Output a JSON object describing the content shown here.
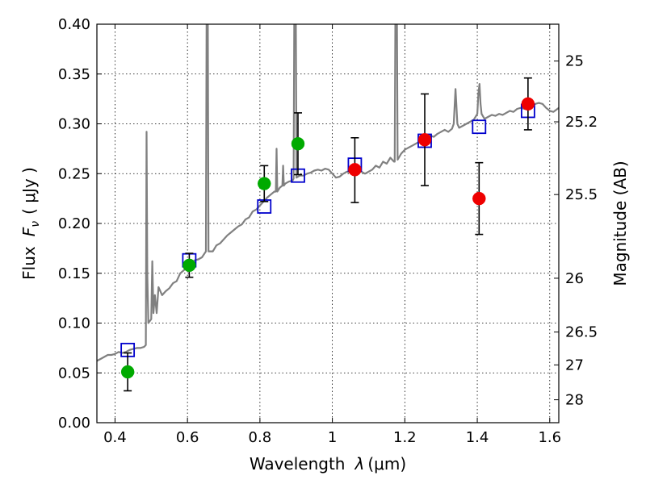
{
  "chart_data": {
    "type": "scatter",
    "xlabel_text": "Wavelength",
    "xlabel_symbol": "λ",
    "xlabel_unit": "(μm)",
    "ylabel_text": "Flux",
    "ylabel_symbol": "F",
    "ylabel_subscript": "ν",
    "ylabel_unit": "( μJy )",
    "y2label": "Magnitude (AB)",
    "xlim": [
      0.35,
      1.625
    ],
    "ylim": [
      0.0,
      0.4
    ],
    "x_ticks": [
      0.4,
      0.6,
      0.8,
      1.0,
      1.2,
      1.4,
      1.6
    ],
    "x_tick_labels": [
      "0.4",
      "0.6",
      "0.8",
      "1",
      "1.2",
      "1.4",
      "1.6"
    ],
    "y_ticks": [
      0.0,
      0.05,
      0.1,
      0.15,
      0.2,
      0.25,
      0.3,
      0.35,
      0.4
    ],
    "y_tick_labels": [
      "0.00",
      "0.05",
      "0.10",
      "0.15",
      "0.20",
      "0.25",
      "0.30",
      "0.35",
      "0.40"
    ],
    "y2_ticks": [
      {
        "label": "25",
        "flux": 0.363
      },
      {
        "label": "25.2",
        "flux": 0.302
      },
      {
        "label": "25.5",
        "flux": 0.229
      },
      {
        "label": "26",
        "flux": 0.145
      },
      {
        "label": "26.5",
        "flux": 0.091
      },
      {
        "label": "27",
        "flux": 0.058
      },
      {
        "label": "28",
        "flux": 0.023
      }
    ],
    "colors": {
      "model": "#808080",
      "green": "#00aa00",
      "red": "#ee0000",
      "square": "#0000cc",
      "error": "#000000"
    },
    "series": [
      {
        "name": "Model SED",
        "kind": "line",
        "points": [
          [
            0.35,
            0.062
          ],
          [
            0.36,
            0.064
          ],
          [
            0.37,
            0.066
          ],
          [
            0.38,
            0.068
          ],
          [
            0.39,
            0.068
          ],
          [
            0.4,
            0.069
          ],
          [
            0.41,
            0.071
          ],
          [
            0.42,
            0.07
          ],
          [
            0.43,
            0.071
          ],
          [
            0.44,
            0.073
          ],
          [
            0.45,
            0.074
          ],
          [
            0.46,
            0.075
          ],
          [
            0.47,
            0.075
          ],
          [
            0.48,
            0.076
          ],
          [
            0.485,
            0.078
          ],
          [
            0.487,
            0.292
          ],
          [
            0.489,
            0.15
          ],
          [
            0.492,
            0.1
          ],
          [
            0.5,
            0.104
          ],
          [
            0.503,
            0.162
          ],
          [
            0.506,
            0.11
          ],
          [
            0.51,
            0.128
          ],
          [
            0.515,
            0.11
          ],
          [
            0.52,
            0.136
          ],
          [
            0.53,
            0.128
          ],
          [
            0.54,
            0.132
          ],
          [
            0.55,
            0.135
          ],
          [
            0.56,
            0.14
          ],
          [
            0.57,
            0.142
          ],
          [
            0.58,
            0.15
          ],
          [
            0.59,
            0.153
          ],
          [
            0.6,
            0.158
          ],
          [
            0.61,
            0.16
          ],
          [
            0.62,
            0.163
          ],
          [
            0.63,
            0.164
          ],
          [
            0.64,
            0.166
          ],
          [
            0.651,
            0.172
          ],
          [
            0.653,
            0.42
          ],
          [
            0.656,
            0.42
          ],
          [
            0.658,
            0.172
          ],
          [
            0.67,
            0.172
          ],
          [
            0.68,
            0.178
          ],
          [
            0.69,
            0.18
          ],
          [
            0.7,
            0.184
          ],
          [
            0.71,
            0.188
          ],
          [
            0.72,
            0.191
          ],
          [
            0.73,
            0.194
          ],
          [
            0.74,
            0.197
          ],
          [
            0.75,
            0.199
          ],
          [
            0.76,
            0.204
          ],
          [
            0.77,
            0.206
          ],
          [
            0.78,
            0.212
          ],
          [
            0.79,
            0.214
          ],
          [
            0.8,
            0.218
          ],
          [
            0.81,
            0.222
          ],
          [
            0.82,
            0.226
          ],
          [
            0.83,
            0.229
          ],
          [
            0.84,
            0.232
          ],
          [
            0.844,
            0.232
          ],
          [
            0.846,
            0.275
          ],
          [
            0.848,
            0.232
          ],
          [
            0.855,
            0.236
          ],
          [
            0.862,
            0.238
          ],
          [
            0.864,
            0.258
          ],
          [
            0.866,
            0.238
          ],
          [
            0.87,
            0.24
          ],
          [
            0.88,
            0.242
          ],
          [
            0.89,
            0.243
          ],
          [
            0.893,
            0.245
          ],
          [
            0.895,
            0.42
          ],
          [
            0.899,
            0.42
          ],
          [
            0.901,
            0.246
          ],
          [
            0.91,
            0.248
          ],
          [
            0.92,
            0.248
          ],
          [
            0.93,
            0.25
          ],
          [
            0.94,
            0.251
          ],
          [
            0.95,
            0.253
          ],
          [
            0.96,
            0.254
          ],
          [
            0.97,
            0.253
          ],
          [
            0.98,
            0.255
          ],
          [
            0.99,
            0.254
          ],
          [
            1.0,
            0.25
          ],
          [
            1.01,
            0.246
          ],
          [
            1.02,
            0.247
          ],
          [
            1.03,
            0.25
          ],
          [
            1.04,
            0.252
          ],
          [
            1.05,
            0.251
          ],
          [
            1.06,
            0.256
          ],
          [
            1.07,
            0.253
          ],
          [
            1.08,
            0.252
          ],
          [
            1.09,
            0.25
          ],
          [
            1.1,
            0.252
          ],
          [
            1.11,
            0.254
          ],
          [
            1.12,
            0.258
          ],
          [
            1.13,
            0.256
          ],
          [
            1.14,
            0.262
          ],
          [
            1.15,
            0.26
          ],
          [
            1.16,
            0.266
          ],
          [
            1.17,
            0.262
          ],
          [
            1.172,
            0.262
          ],
          [
            1.174,
            0.42
          ],
          [
            1.178,
            0.42
          ],
          [
            1.18,
            0.264
          ],
          [
            1.19,
            0.27
          ],
          [
            1.2,
            0.274
          ],
          [
            1.21,
            0.276
          ],
          [
            1.22,
            0.278
          ],
          [
            1.23,
            0.28
          ],
          [
            1.24,
            0.282
          ],
          [
            1.25,
            0.283
          ],
          [
            1.26,
            0.285
          ],
          [
            1.27,
            0.288
          ],
          [
            1.28,
            0.287
          ],
          [
            1.29,
            0.29
          ],
          [
            1.3,
            0.292
          ],
          [
            1.31,
            0.294
          ],
          [
            1.32,
            0.292
          ],
          [
            1.33,
            0.295
          ],
          [
            1.335,
            0.3
          ],
          [
            1.34,
            0.335
          ],
          [
            1.345,
            0.3
          ],
          [
            1.35,
            0.296
          ],
          [
            1.36,
            0.298
          ],
          [
            1.37,
            0.3
          ],
          [
            1.38,
            0.302
          ],
          [
            1.39,
            0.304
          ],
          [
            1.4,
            0.31
          ],
          [
            1.403,
            0.33
          ],
          [
            1.406,
            0.34
          ],
          [
            1.409,
            0.32
          ],
          [
            1.412,
            0.31
          ],
          [
            1.42,
            0.305
          ],
          [
            1.43,
            0.307
          ],
          [
            1.44,
            0.309
          ],
          [
            1.45,
            0.308
          ],
          [
            1.46,
            0.31
          ],
          [
            1.47,
            0.309
          ],
          [
            1.48,
            0.311
          ],
          [
            1.49,
            0.313
          ],
          [
            1.5,
            0.312
          ],
          [
            1.51,
            0.315
          ],
          [
            1.52,
            0.316
          ],
          [
            1.53,
            0.315
          ],
          [
            1.54,
            0.318
          ],
          [
            1.55,
            0.319
          ],
          [
            1.56,
            0.32
          ],
          [
            1.57,
            0.321
          ],
          [
            1.58,
            0.32
          ],
          [
            1.59,
            0.316
          ],
          [
            1.6,
            0.313
          ],
          [
            1.61,
            0.312
          ],
          [
            1.625,
            0.316
          ]
        ]
      },
      {
        "name": "Green detections",
        "kind": "circle",
        "color_key": "green",
        "points": [
          {
            "x": 0.435,
            "y": 0.051,
            "err_lo": 0.032,
            "err_hi": 0.07
          },
          {
            "x": 0.605,
            "y": 0.158,
            "err_lo": 0.146,
            "err_hi": 0.17
          },
          {
            "x": 0.812,
            "y": 0.24,
            "err_lo": 0.222,
            "err_hi": 0.258
          },
          {
            "x": 0.905,
            "y": 0.28,
            "err_lo": 0.249,
            "err_hi": 0.311
          }
        ]
      },
      {
        "name": "Red detections",
        "kind": "circle",
        "color_key": "red",
        "points": [
          {
            "x": 1.062,
            "y": 0.254,
            "err_lo": 0.221,
            "err_hi": 0.286
          },
          {
            "x": 1.255,
            "y": 0.284,
            "err_lo": 0.238,
            "err_hi": 0.33
          },
          {
            "x": 1.405,
            "y": 0.225,
            "err_lo": 0.189,
            "err_hi": 0.261
          },
          {
            "x": 1.54,
            "y": 0.32,
            "err_lo": 0.294,
            "err_hi": 0.346
          }
        ]
      },
      {
        "name": "Model photometry",
        "kind": "square",
        "color_key": "square",
        "points": [
          {
            "x": 0.435,
            "y": 0.073
          },
          {
            "x": 0.605,
            "y": 0.163
          },
          {
            "x": 0.812,
            "y": 0.217
          },
          {
            "x": 0.905,
            "y": 0.248
          },
          {
            "x": 1.062,
            "y": 0.259
          },
          {
            "x": 1.255,
            "y": 0.283
          },
          {
            "x": 1.405,
            "y": 0.297
          },
          {
            "x": 1.54,
            "y": 0.313
          }
        ]
      }
    ]
  }
}
